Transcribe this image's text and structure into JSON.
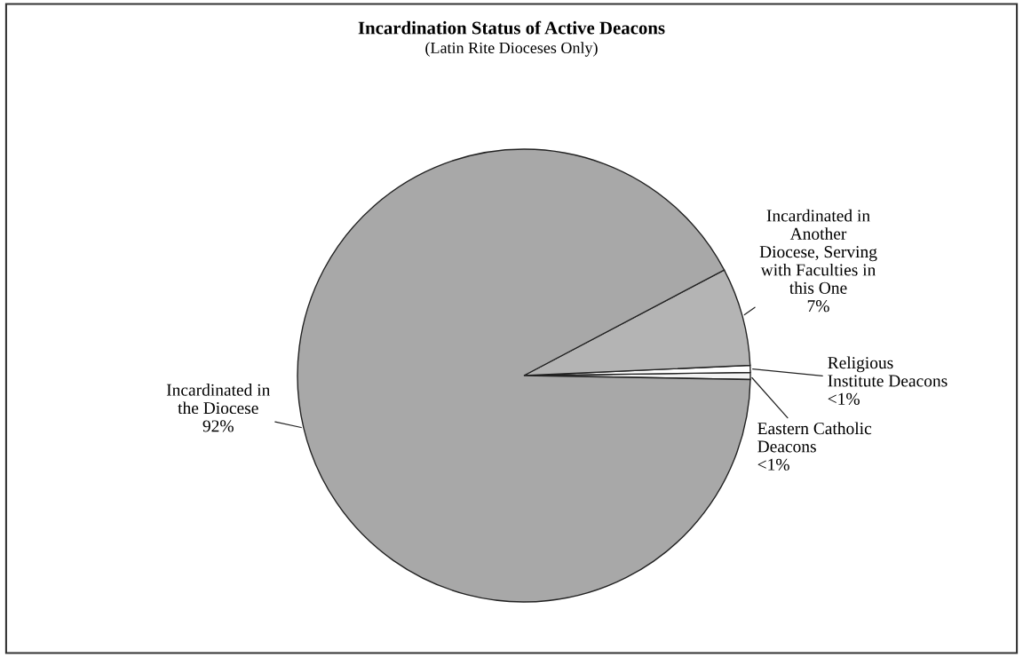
{
  "chart_data": {
    "type": "pie",
    "title": "Incardination Status of Active Deacons",
    "subtitle": "(Latin Rite Dioceses Only)",
    "categories": [
      "Eastern Catholic\nDeacons",
      "Religious\nInstitute Deacons",
      "Incardinated in\nAnother\nDiocese, Serving\nwith Faculties in\nthis One",
      "Incardinated in\nthe Diocese"
    ],
    "values": [
      0.5,
      0.5,
      7,
      92
    ],
    "value_labels": [
      "<1%",
      "<1%",
      "7%",
      "92%"
    ],
    "colors": [
      "#f2f2f2",
      "#ffffff",
      "#b4b4b4",
      "#a8a8a8"
    ],
    "legend": false
  }
}
